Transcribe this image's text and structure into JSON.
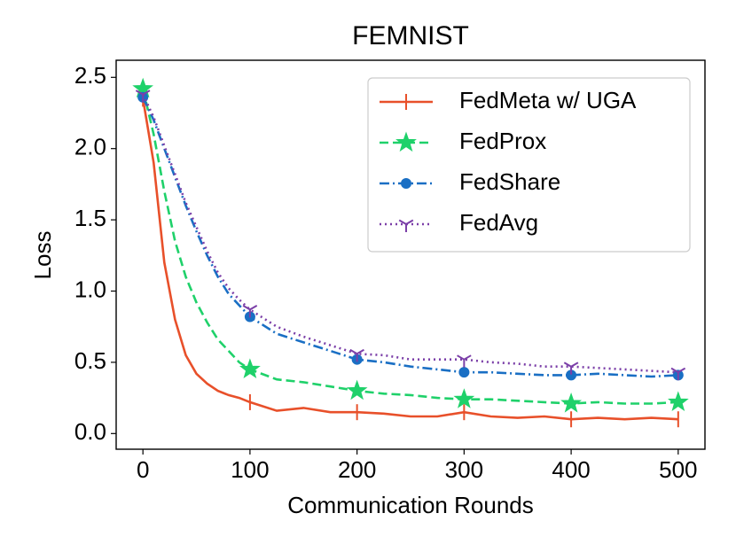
{
  "chart_data": {
    "type": "line",
    "title": "FEMNIST",
    "x_label": "Communication Rounds",
    "y_label": "Loss",
    "x": [
      0,
      10,
      20,
      30,
      40,
      50,
      60,
      70,
      80,
      90,
      100,
      125,
      150,
      175,
      200,
      225,
      250,
      275,
      300,
      325,
      350,
      375,
      400,
      425,
      450,
      475,
      500
    ],
    "series": [
      {
        "name": "FedMeta w/ UGA",
        "color": "#e8502a",
        "linestyle": "solid",
        "marker": "|",
        "values": [
          2.35,
          1.9,
          1.2,
          0.8,
          0.55,
          0.42,
          0.35,
          0.3,
          0.27,
          0.25,
          0.22,
          0.16,
          0.18,
          0.15,
          0.15,
          0.14,
          0.12,
          0.12,
          0.15,
          0.12,
          0.11,
          0.12,
          0.1,
          0.11,
          0.1,
          0.11,
          0.1
        ]
      },
      {
        "name": "FedProx",
        "color": "#1fd16a",
        "linestyle": "dashed",
        "marker": "*",
        "values": [
          2.42,
          2.1,
          1.7,
          1.35,
          1.1,
          0.92,
          0.78,
          0.66,
          0.58,
          0.5,
          0.45,
          0.38,
          0.36,
          0.33,
          0.3,
          0.28,
          0.27,
          0.25,
          0.24,
          0.24,
          0.23,
          0.22,
          0.21,
          0.22,
          0.21,
          0.21,
          0.22
        ]
      },
      {
        "name": "FedShare",
        "color": "#1a6fc4",
        "linestyle": "dashdot",
        "marker": "o",
        "values": [
          2.36,
          2.2,
          2.0,
          1.8,
          1.6,
          1.42,
          1.25,
          1.1,
          0.98,
          0.9,
          0.82,
          0.7,
          0.64,
          0.58,
          0.52,
          0.5,
          0.47,
          0.45,
          0.43,
          0.43,
          0.42,
          0.41,
          0.41,
          0.42,
          0.41,
          0.4,
          0.41
        ]
      },
      {
        "name": "FedAvg",
        "color": "#7b3fa8",
        "linestyle": "dotted",
        "marker": "1",
        "values": [
          2.38,
          2.22,
          2.02,
          1.82,
          1.62,
          1.45,
          1.28,
          1.13,
          1.02,
          0.94,
          0.87,
          0.75,
          0.68,
          0.62,
          0.56,
          0.55,
          0.52,
          0.52,
          0.52,
          0.5,
          0.49,
          0.47,
          0.47,
          0.46,
          0.45,
          0.44,
          0.43
        ]
      }
    ],
    "xlim": [
      -25,
      525
    ],
    "xticks": [
      0,
      100,
      200,
      300,
      400,
      500
    ],
    "ylim": [
      -0.11,
      2.62
    ],
    "yticks": [
      {
        "value": 0,
        "label": "0.0"
      },
      0.5,
      {
        "value": 1,
        "label": "1.0"
      },
      1.5,
      {
        "value": 2,
        "label": "2.0"
      },
      2.5
    ],
    "legend": "upper right",
    "marker_every": 100
  }
}
